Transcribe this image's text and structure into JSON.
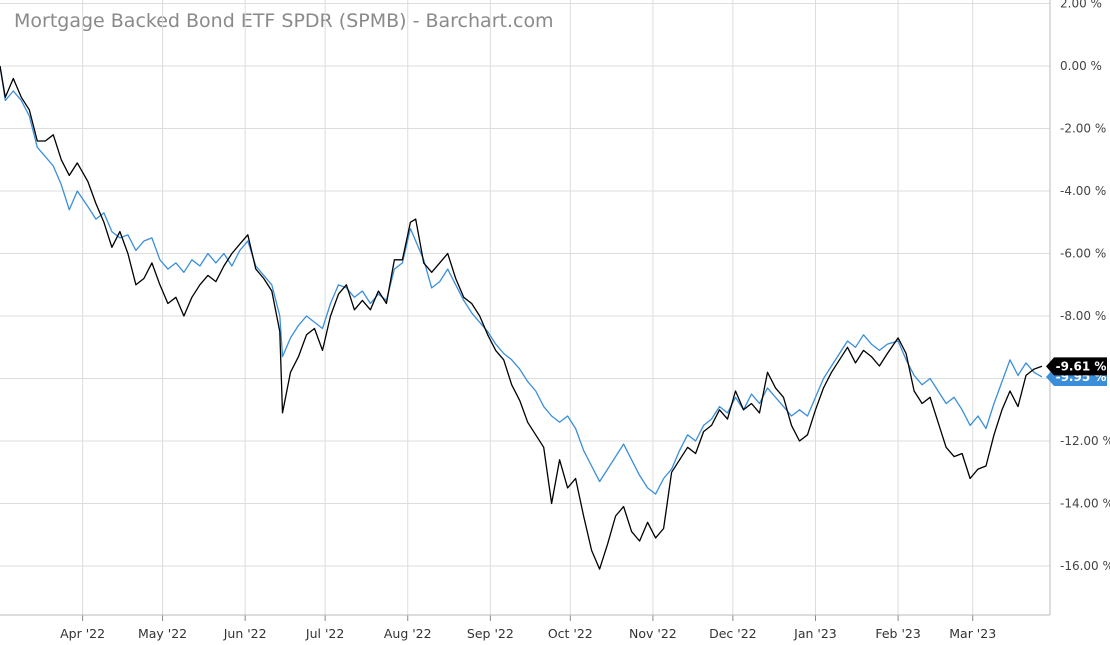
{
  "title": "Mortgage Backed Bond ETF SPDR (SPMB) - Barchart.com",
  "colors": {
    "series_a": "#000000",
    "series_b": "#3b8fd9",
    "grid": "#dddddd"
  },
  "chart_data": {
    "type": "line",
    "title": "Mortgage Backed Bond ETF SPDR (SPMB) - Barchart.com",
    "xlabel": "",
    "ylabel": "",
    "y_unit": "%",
    "ylim": [
      -17.5,
      2.0
    ],
    "xlim": [
      "2022-03-01",
      "2023-03-30"
    ],
    "grid": true,
    "y_ticks": [
      2,
      0,
      -2,
      -4,
      -6,
      -8,
      -10,
      -12,
      -14,
      -16
    ],
    "y_tick_labels": [
      "2.00 %",
      "0.00 %",
      "-2.00 %",
      "-4.00 %",
      "-6.00 %",
      "-8.00 %",
      "",
      "-12.00 %",
      "-14.00 %",
      "-16.00 %"
    ],
    "x_ticks": [
      "2022-04-01",
      "2022-05-01",
      "2022-06-01",
      "2022-07-01",
      "2022-08-01",
      "2022-09-01",
      "2022-10-01",
      "2022-11-01",
      "2022-12-01",
      "2023-01-01",
      "2023-02-01",
      "2023-03-01"
    ],
    "x_tick_labels": [
      "Apr '22",
      "May '22",
      "Jun '22",
      "Jul '22",
      "Aug '22",
      "Sep '22",
      "Oct '22",
      "Nov '22",
      "Dec '22",
      "Jan '23",
      "Feb '23",
      "Mar '23"
    ],
    "series": [
      {
        "color": "#000000",
        "last_label": "-9.61 %",
        "points": [
          [
            "2022-03-01",
            0.0
          ],
          [
            "2022-03-03",
            -1.0
          ],
          [
            "2022-03-06",
            -0.4
          ],
          [
            "2022-03-09",
            -1.0
          ],
          [
            "2022-03-12",
            -1.4
          ],
          [
            "2022-03-15",
            -2.4
          ],
          [
            "2022-03-18",
            -2.4
          ],
          [
            "2022-03-21",
            -2.2
          ],
          [
            "2022-03-24",
            -3.0
          ],
          [
            "2022-03-27",
            -3.5
          ],
          [
            "2022-03-30",
            -3.1
          ],
          [
            "2022-04-03",
            -3.7
          ],
          [
            "2022-04-06",
            -4.4
          ],
          [
            "2022-04-09",
            -5.0
          ],
          [
            "2022-04-12",
            -5.8
          ],
          [
            "2022-04-15",
            -5.3
          ],
          [
            "2022-04-18",
            -6.0
          ],
          [
            "2022-04-21",
            -7.0
          ],
          [
            "2022-04-24",
            -6.8
          ],
          [
            "2022-04-27",
            -6.3
          ],
          [
            "2022-04-30",
            -7.0
          ],
          [
            "2022-05-03",
            -7.6
          ],
          [
            "2022-05-06",
            -7.4
          ],
          [
            "2022-05-09",
            -8.0
          ],
          [
            "2022-05-12",
            -7.4
          ],
          [
            "2022-05-15",
            -7.0
          ],
          [
            "2022-05-18",
            -6.7
          ],
          [
            "2022-05-21",
            -6.9
          ],
          [
            "2022-05-24",
            -6.4
          ],
          [
            "2022-05-27",
            -6.0
          ],
          [
            "2022-05-30",
            -5.7
          ],
          [
            "2022-06-02",
            -5.4
          ],
          [
            "2022-06-05",
            -6.5
          ],
          [
            "2022-06-08",
            -6.8
          ],
          [
            "2022-06-11",
            -7.2
          ],
          [
            "2022-06-14",
            -8.5
          ],
          [
            "2022-06-15",
            -11.1
          ],
          [
            "2022-06-18",
            -9.8
          ],
          [
            "2022-06-21",
            -9.3
          ],
          [
            "2022-06-24",
            -8.6
          ],
          [
            "2022-06-27",
            -8.4
          ],
          [
            "2022-06-30",
            -9.1
          ],
          [
            "2022-07-03",
            -8.0
          ],
          [
            "2022-07-06",
            -7.3
          ],
          [
            "2022-07-09",
            -7.0
          ],
          [
            "2022-07-12",
            -7.8
          ],
          [
            "2022-07-15",
            -7.5
          ],
          [
            "2022-07-18",
            -7.8
          ],
          [
            "2022-07-21",
            -7.2
          ],
          [
            "2022-07-24",
            -7.6
          ],
          [
            "2022-07-27",
            -6.2
          ],
          [
            "2022-07-30",
            -6.2
          ],
          [
            "2022-08-02",
            -5.0
          ],
          [
            "2022-08-04",
            -4.9
          ],
          [
            "2022-08-07",
            -6.3
          ],
          [
            "2022-08-10",
            -6.6
          ],
          [
            "2022-08-13",
            -6.3
          ],
          [
            "2022-08-16",
            -6.0
          ],
          [
            "2022-08-19",
            -6.8
          ],
          [
            "2022-08-22",
            -7.4
          ],
          [
            "2022-08-25",
            -7.6
          ],
          [
            "2022-08-28",
            -8.0
          ],
          [
            "2022-08-31",
            -8.6
          ],
          [
            "2022-09-03",
            -9.1
          ],
          [
            "2022-09-06",
            -9.4
          ],
          [
            "2022-09-09",
            -10.2
          ],
          [
            "2022-09-12",
            -10.7
          ],
          [
            "2022-09-15",
            -11.4
          ],
          [
            "2022-09-18",
            -11.8
          ],
          [
            "2022-09-21",
            -12.2
          ],
          [
            "2022-09-24",
            -14.0
          ],
          [
            "2022-09-27",
            -12.6
          ],
          [
            "2022-09-30",
            -13.5
          ],
          [
            "2022-10-03",
            -13.2
          ],
          [
            "2022-10-06",
            -14.4
          ],
          [
            "2022-10-09",
            -15.5
          ],
          [
            "2022-10-12",
            -16.1
          ],
          [
            "2022-10-15",
            -15.3
          ],
          [
            "2022-10-18",
            -14.4
          ],
          [
            "2022-10-21",
            -14.1
          ],
          [
            "2022-10-24",
            -14.9
          ],
          [
            "2022-10-27",
            -15.2
          ],
          [
            "2022-10-30",
            -14.6
          ],
          [
            "2022-11-02",
            -15.1
          ],
          [
            "2022-11-05",
            -14.8
          ],
          [
            "2022-11-08",
            -13.0
          ],
          [
            "2022-11-11",
            -12.6
          ],
          [
            "2022-11-14",
            -12.2
          ],
          [
            "2022-11-17",
            -12.4
          ],
          [
            "2022-11-20",
            -11.7
          ],
          [
            "2022-11-23",
            -11.5
          ],
          [
            "2022-11-26",
            -11.0
          ],
          [
            "2022-11-29",
            -11.3
          ],
          [
            "2022-12-02",
            -10.4
          ],
          [
            "2022-12-05",
            -11.0
          ],
          [
            "2022-12-08",
            -10.8
          ],
          [
            "2022-12-11",
            -11.1
          ],
          [
            "2022-12-14",
            -9.8
          ],
          [
            "2022-12-17",
            -10.3
          ],
          [
            "2022-12-20",
            -10.6
          ],
          [
            "2022-12-23",
            -11.5
          ],
          [
            "2022-12-26",
            -12.0
          ],
          [
            "2022-12-29",
            -11.8
          ],
          [
            "2023-01-01",
            -11.0
          ],
          [
            "2023-01-04",
            -10.3
          ],
          [
            "2023-01-07",
            -9.8
          ],
          [
            "2023-01-10",
            -9.4
          ],
          [
            "2023-01-13",
            -9.0
          ],
          [
            "2023-01-16",
            -9.5
          ],
          [
            "2023-01-19",
            -9.1
          ],
          [
            "2023-01-22",
            -9.3
          ],
          [
            "2023-01-25",
            -9.6
          ],
          [
            "2023-01-28",
            -9.2
          ],
          [
            "2023-02-01",
            -8.7
          ],
          [
            "2023-02-04",
            -9.2
          ],
          [
            "2023-02-07",
            -10.4
          ],
          [
            "2023-02-10",
            -10.8
          ],
          [
            "2023-02-13",
            -10.6
          ],
          [
            "2023-02-16",
            -11.4
          ],
          [
            "2023-02-19",
            -12.2
          ],
          [
            "2023-02-22",
            -12.5
          ],
          [
            "2023-02-25",
            -12.4
          ],
          [
            "2023-02-28",
            -13.2
          ],
          [
            "2023-03-03",
            -12.9
          ],
          [
            "2023-03-06",
            -12.8
          ],
          [
            "2023-03-09",
            -11.8
          ],
          [
            "2023-03-12",
            -11.0
          ],
          [
            "2023-03-15",
            -10.4
          ],
          [
            "2023-03-18",
            -10.9
          ],
          [
            "2023-03-21",
            -9.9
          ],
          [
            "2023-03-24",
            -9.7
          ],
          [
            "2023-03-27",
            -9.61
          ]
        ]
      },
      {
        "color": "#3b8fd9",
        "last_label": "-9.95 %",
        "points": [
          [
            "2022-03-01",
            0.0
          ],
          [
            "2022-03-03",
            -1.1
          ],
          [
            "2022-03-06",
            -0.8
          ],
          [
            "2022-03-09",
            -1.1
          ],
          [
            "2022-03-12",
            -1.6
          ],
          [
            "2022-03-15",
            -2.6
          ],
          [
            "2022-03-18",
            -2.9
          ],
          [
            "2022-03-21",
            -3.2
          ],
          [
            "2022-03-24",
            -3.8
          ],
          [
            "2022-03-27",
            -4.6
          ],
          [
            "2022-03-30",
            -4.0
          ],
          [
            "2022-04-03",
            -4.5
          ],
          [
            "2022-04-06",
            -4.9
          ],
          [
            "2022-04-09",
            -4.7
          ],
          [
            "2022-04-12",
            -5.3
          ],
          [
            "2022-04-15",
            -5.5
          ],
          [
            "2022-04-18",
            -5.4
          ],
          [
            "2022-04-21",
            -5.9
          ],
          [
            "2022-04-24",
            -5.6
          ],
          [
            "2022-04-27",
            -5.5
          ],
          [
            "2022-04-30",
            -6.2
          ],
          [
            "2022-05-03",
            -6.5
          ],
          [
            "2022-05-06",
            -6.3
          ],
          [
            "2022-05-09",
            -6.6
          ],
          [
            "2022-05-12",
            -6.2
          ],
          [
            "2022-05-15",
            -6.4
          ],
          [
            "2022-05-18",
            -6.0
          ],
          [
            "2022-05-21",
            -6.3
          ],
          [
            "2022-05-24",
            -6.0
          ],
          [
            "2022-05-27",
            -6.4
          ],
          [
            "2022-05-30",
            -5.9
          ],
          [
            "2022-06-02",
            -5.6
          ],
          [
            "2022-06-05",
            -6.4
          ],
          [
            "2022-06-08",
            -6.7
          ],
          [
            "2022-06-11",
            -7.0
          ],
          [
            "2022-06-14",
            -8.0
          ],
          [
            "2022-06-15",
            -9.3
          ],
          [
            "2022-06-18",
            -8.7
          ],
          [
            "2022-06-21",
            -8.3
          ],
          [
            "2022-06-24",
            -8.0
          ],
          [
            "2022-06-27",
            -8.2
          ],
          [
            "2022-06-30",
            -8.4
          ],
          [
            "2022-07-03",
            -7.6
          ],
          [
            "2022-07-06",
            -7.0
          ],
          [
            "2022-07-09",
            -7.1
          ],
          [
            "2022-07-12",
            -7.4
          ],
          [
            "2022-07-15",
            -7.2
          ],
          [
            "2022-07-18",
            -7.6
          ],
          [
            "2022-07-21",
            -7.3
          ],
          [
            "2022-07-24",
            -7.5
          ],
          [
            "2022-07-27",
            -6.5
          ],
          [
            "2022-07-30",
            -6.3
          ],
          [
            "2022-08-02",
            -5.2
          ],
          [
            "2022-08-04",
            -5.6
          ],
          [
            "2022-08-07",
            -6.2
          ],
          [
            "2022-08-10",
            -7.1
          ],
          [
            "2022-08-13",
            -6.9
          ],
          [
            "2022-08-16",
            -6.5
          ],
          [
            "2022-08-19",
            -7.0
          ],
          [
            "2022-08-22",
            -7.5
          ],
          [
            "2022-08-25",
            -7.9
          ],
          [
            "2022-08-28",
            -8.2
          ],
          [
            "2022-08-31",
            -8.5
          ],
          [
            "2022-09-03",
            -8.9
          ],
          [
            "2022-09-06",
            -9.2
          ],
          [
            "2022-09-09",
            -9.4
          ],
          [
            "2022-09-12",
            -9.7
          ],
          [
            "2022-09-15",
            -10.1
          ],
          [
            "2022-09-18",
            -10.4
          ],
          [
            "2022-09-21",
            -10.9
          ],
          [
            "2022-09-24",
            -11.2
          ],
          [
            "2022-09-27",
            -11.4
          ],
          [
            "2022-09-30",
            -11.2
          ],
          [
            "2022-10-03",
            -11.6
          ],
          [
            "2022-10-06",
            -12.3
          ],
          [
            "2022-10-09",
            -12.8
          ],
          [
            "2022-10-12",
            -13.3
          ],
          [
            "2022-10-15",
            -12.9
          ],
          [
            "2022-10-18",
            -12.5
          ],
          [
            "2022-10-21",
            -12.1
          ],
          [
            "2022-10-24",
            -12.6
          ],
          [
            "2022-10-27",
            -13.1
          ],
          [
            "2022-10-30",
            -13.5
          ],
          [
            "2022-11-02",
            -13.7
          ],
          [
            "2022-11-05",
            -13.2
          ],
          [
            "2022-11-08",
            -12.9
          ],
          [
            "2022-11-11",
            -12.3
          ],
          [
            "2022-11-14",
            -11.8
          ],
          [
            "2022-11-17",
            -12.0
          ],
          [
            "2022-11-20",
            -11.5
          ],
          [
            "2022-11-23",
            -11.3
          ],
          [
            "2022-11-26",
            -10.9
          ],
          [
            "2022-11-29",
            -11.1
          ],
          [
            "2022-12-02",
            -10.6
          ],
          [
            "2022-12-05",
            -11.0
          ],
          [
            "2022-12-08",
            -10.5
          ],
          [
            "2022-12-11",
            -10.8
          ],
          [
            "2022-12-14",
            -10.3
          ],
          [
            "2022-12-17",
            -10.6
          ],
          [
            "2022-12-20",
            -10.9
          ],
          [
            "2022-12-23",
            -11.2
          ],
          [
            "2022-12-26",
            -11.0
          ],
          [
            "2022-12-29",
            -11.2
          ],
          [
            "2023-01-01",
            -10.6
          ],
          [
            "2023-01-04",
            -10.0
          ],
          [
            "2023-01-07",
            -9.6
          ],
          [
            "2023-01-10",
            -9.2
          ],
          [
            "2023-01-13",
            -8.8
          ],
          [
            "2023-01-16",
            -9.0
          ],
          [
            "2023-01-19",
            -8.6
          ],
          [
            "2023-01-22",
            -8.9
          ],
          [
            "2023-01-25",
            -9.1
          ],
          [
            "2023-01-28",
            -8.9
          ],
          [
            "2023-02-01",
            -8.8
          ],
          [
            "2023-02-04",
            -9.4
          ],
          [
            "2023-02-07",
            -9.9
          ],
          [
            "2023-02-10",
            -10.2
          ],
          [
            "2023-02-13",
            -10.0
          ],
          [
            "2023-02-16",
            -10.4
          ],
          [
            "2023-02-19",
            -10.8
          ],
          [
            "2023-02-22",
            -10.6
          ],
          [
            "2023-02-25",
            -11.0
          ],
          [
            "2023-02-28",
            -11.5
          ],
          [
            "2023-03-03",
            -11.2
          ],
          [
            "2023-03-06",
            -11.6
          ],
          [
            "2023-03-09",
            -10.8
          ],
          [
            "2023-03-12",
            -10.1
          ],
          [
            "2023-03-15",
            -9.4
          ],
          [
            "2023-03-18",
            -9.9
          ],
          [
            "2023-03-21",
            -9.5
          ],
          [
            "2023-03-24",
            -9.8
          ],
          [
            "2023-03-27",
            -9.95
          ]
        ]
      }
    ]
  }
}
